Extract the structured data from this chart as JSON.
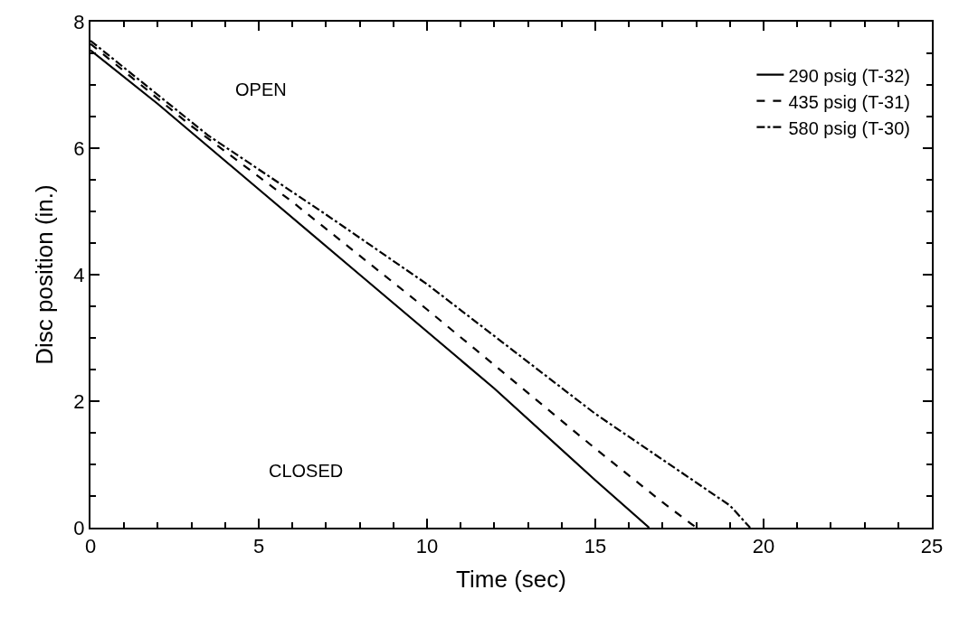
{
  "chart_data": {
    "type": "line",
    "xlabel": "Time (sec)",
    "ylabel": "Disc position (in.)",
    "xlim": [
      0,
      25
    ],
    "xticks": [
      0,
      5,
      10,
      15,
      20,
      25
    ],
    "ylim": [
      0,
      8
    ],
    "yticks": [
      0,
      2,
      4,
      6,
      8
    ],
    "legend": "top right",
    "marker": "none",
    "annotations": [
      "OPEN",
      "CLOSED"
    ],
    "series": [
      {
        "name": "290 psig (T-32)",
        "color": "#000000",
        "line_style": "solid",
        "x": [
          0,
          2,
          5,
          8,
          12,
          15,
          16.6
        ],
        "values": [
          7.55,
          6.7,
          5.35,
          4.0,
          2.2,
          0.75,
          0
        ]
      },
      {
        "name": "435 psig (T-31)",
        "color": "#000000",
        "line_style": "dashed",
        "x": [
          0,
          3,
          6,
          10,
          15,
          17,
          18.0
        ],
        "values": [
          7.65,
          6.35,
          5.15,
          3.45,
          1.25,
          0.4,
          0
        ]
      },
      {
        "name": "580 psig (T-30)",
        "color": "#000000",
        "line_style": "dashdot",
        "x": [
          0,
          3.5,
          7,
          10,
          15,
          19,
          19.6
        ],
        "values": [
          7.7,
          6.2,
          4.95,
          3.85,
          1.8,
          0.35,
          0
        ]
      }
    ]
  }
}
